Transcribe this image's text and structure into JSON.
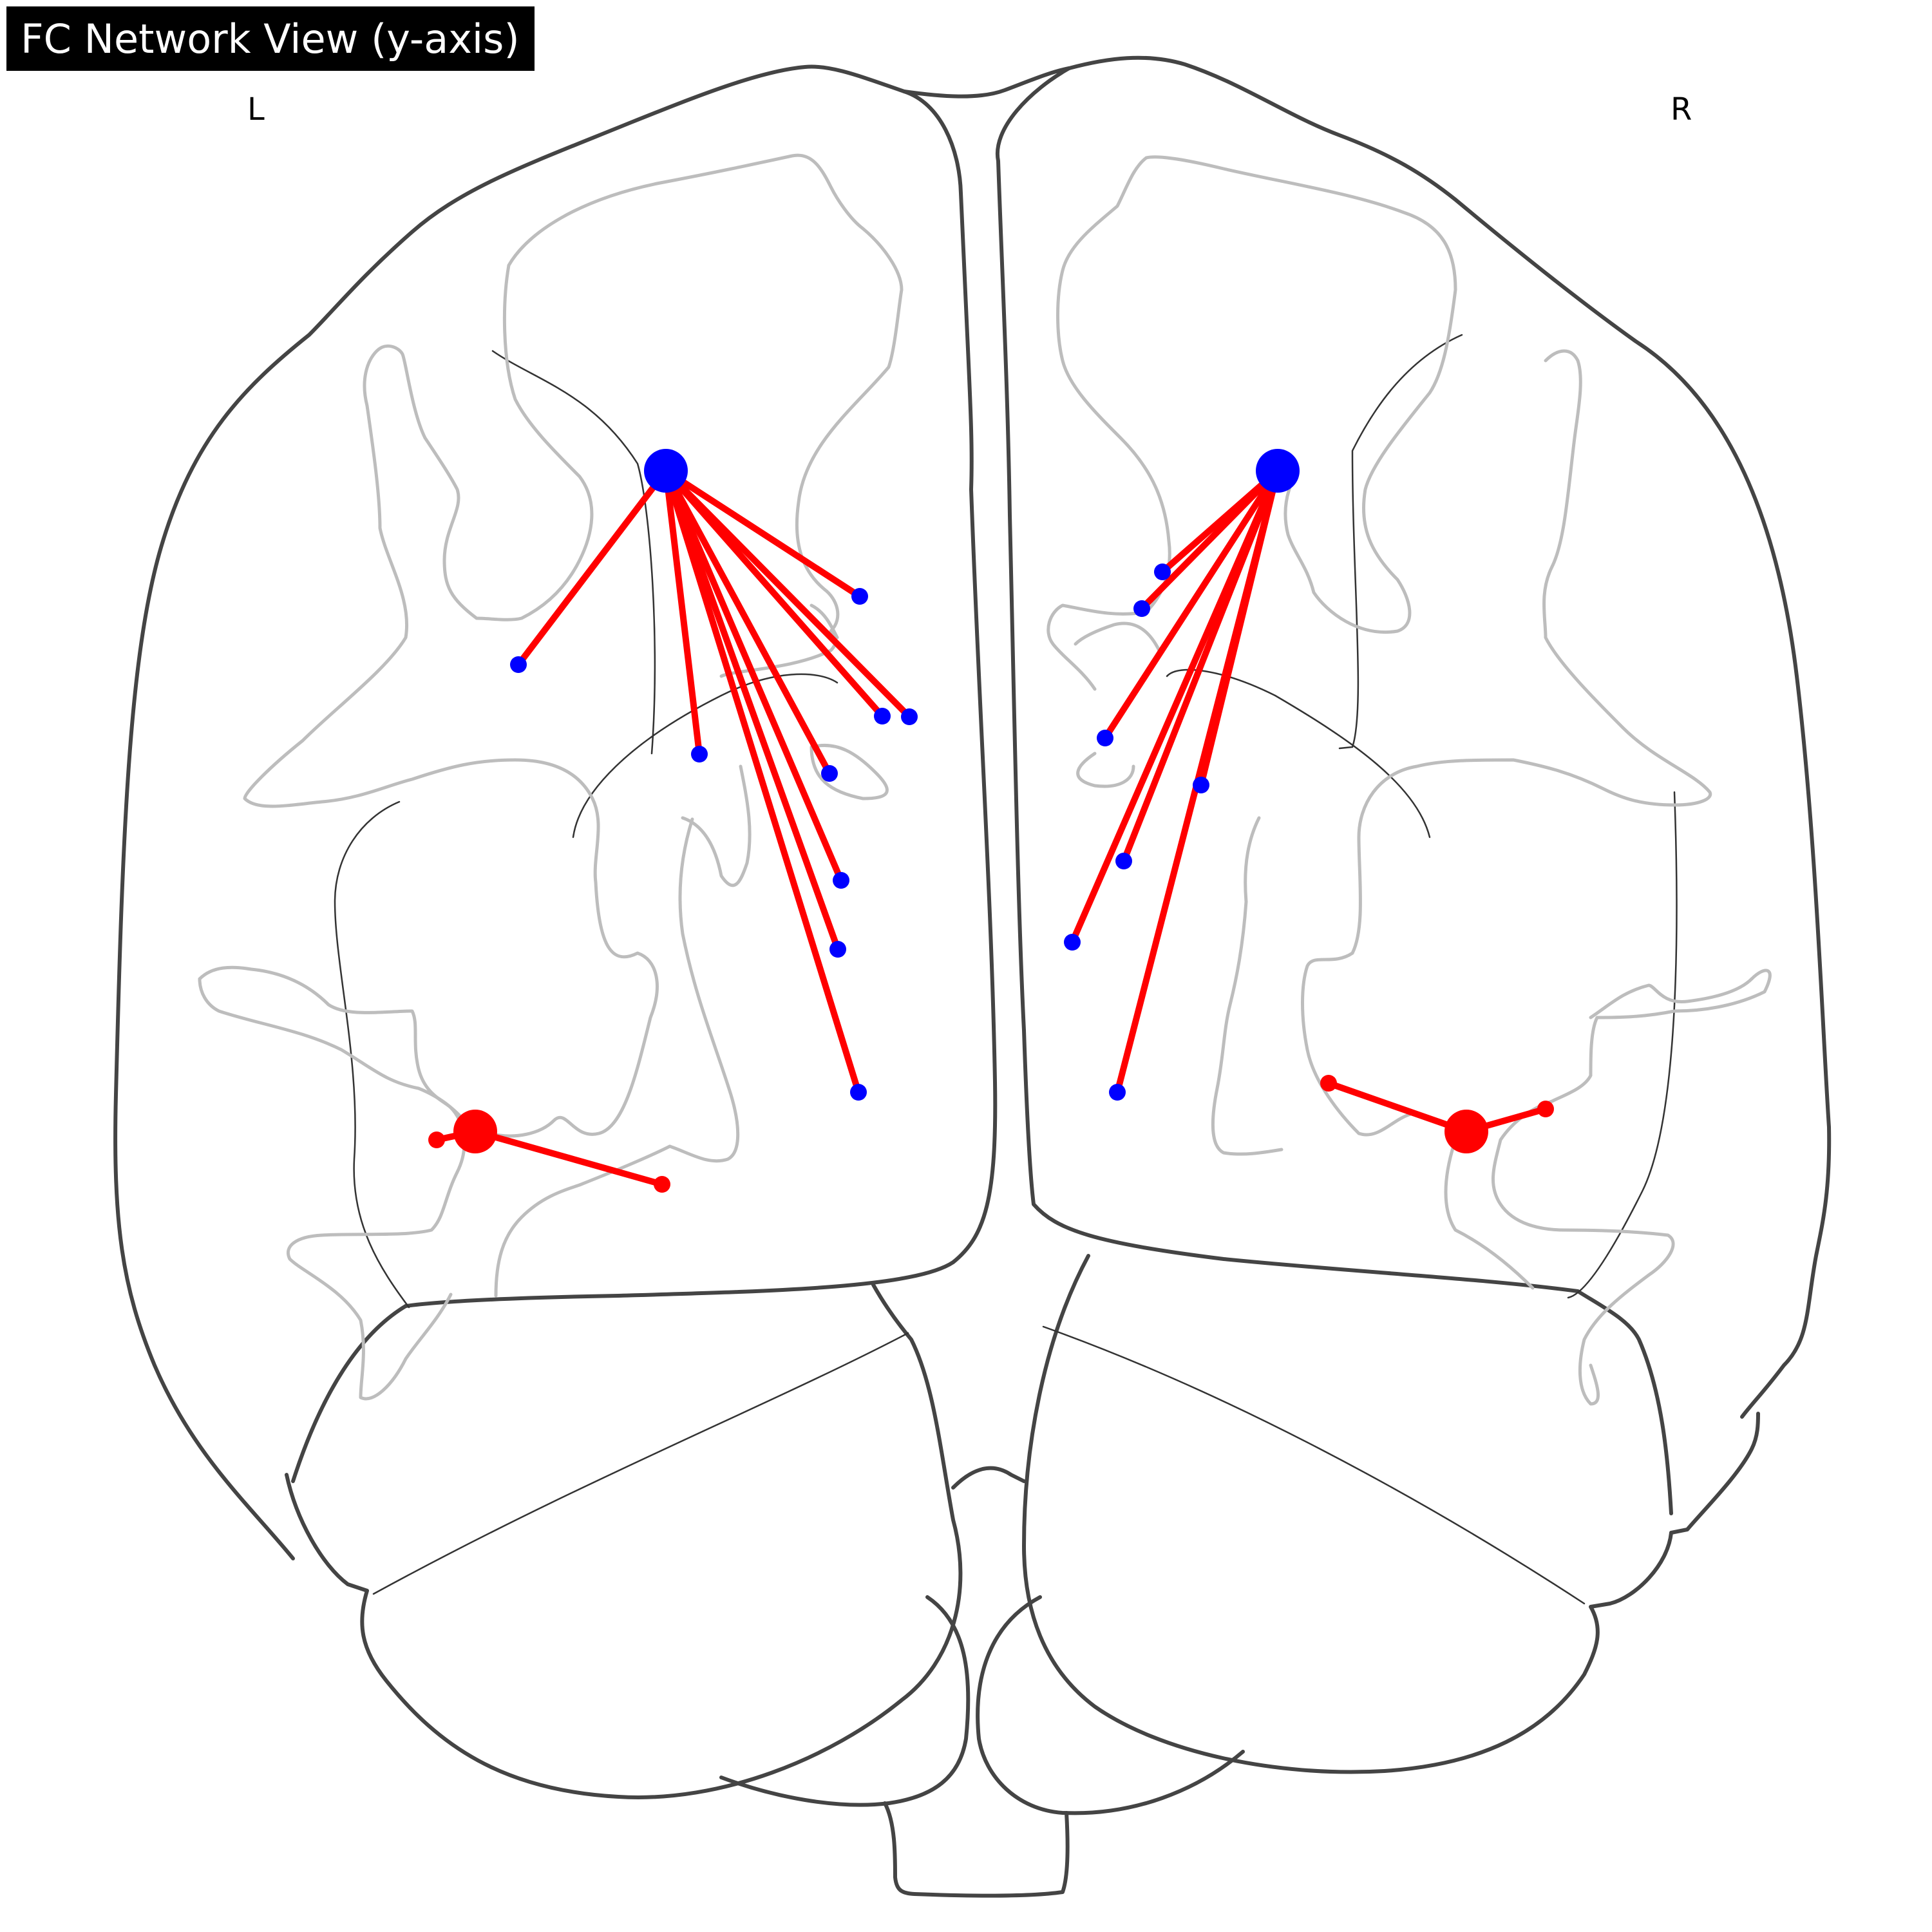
{
  "title": "FC Network View (y-axis)",
  "hemispheres": {
    "left": "L",
    "right": "R"
  },
  "colors": {
    "node_a": "#0000ff",
    "node_b": "#ff0000",
    "edge": "#ff0000",
    "outline": "#444444",
    "gyrus": "#bdbdbd"
  }
}
